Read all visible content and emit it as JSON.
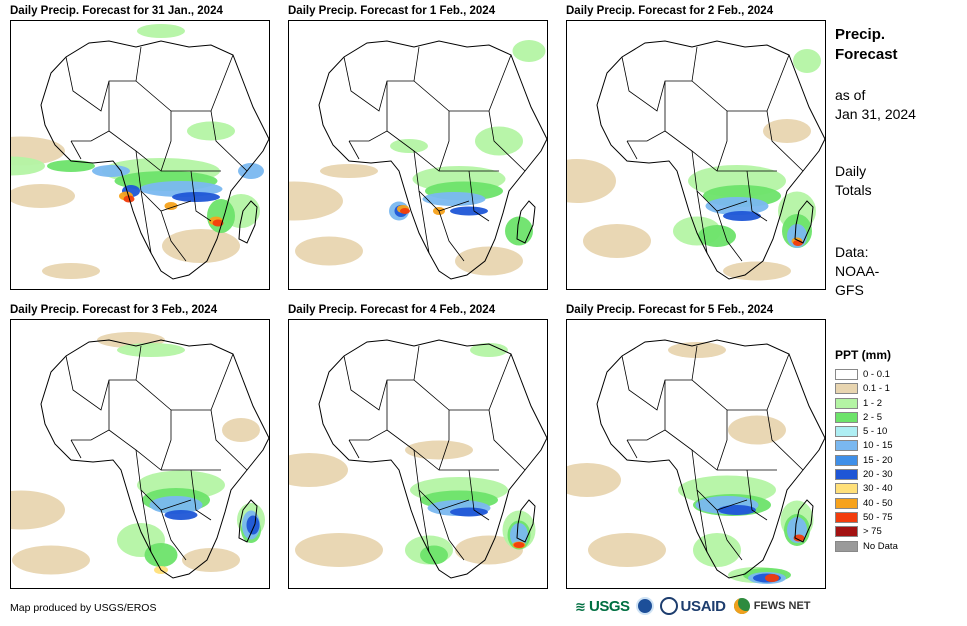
{
  "panels": [
    {
      "title": "Daily Precip. Forecast for 31 Jan., 2024"
    },
    {
      "title": "Daily Precip. Forecast for 1 Feb., 2024"
    },
    {
      "title": "Daily Precip. Forecast for 2 Feb., 2024"
    },
    {
      "title": "Daily Precip. Forecast for 3 Feb., 2024"
    },
    {
      "title": "Daily Precip. Forecast for 4 Feb., 2024"
    },
    {
      "title": "Daily Precip. Forecast for 5 Feb., 2024"
    }
  ],
  "sidebar": {
    "title_line1": "Precip.",
    "title_line2": "Forecast",
    "asof_line1": "as of",
    "asof_line2": "Jan 31, 2024",
    "totals_line1": "Daily",
    "totals_line2": "Totals",
    "data_line1": "Data:",
    "data_line2": "NOAA-",
    "data_line3": "GFS"
  },
  "legend": {
    "title": "PPT (mm)",
    "items": [
      {
        "label": "0 - 0.1",
        "color": "#ffffff"
      },
      {
        "label": "0.1 - 1",
        "color": "#e8d5b0"
      },
      {
        "label": "1 - 2",
        "color": "#b4f4a4"
      },
      {
        "label": "2 - 5",
        "color": "#6de36a"
      },
      {
        "label": "5 - 10",
        "color": "#aeeef3"
      },
      {
        "label": "10 - 15",
        "color": "#7ab8f0"
      },
      {
        "label": "15 - 20",
        "color": "#3f8fe8"
      },
      {
        "label": "20 - 30",
        "color": "#1f56d6"
      },
      {
        "label": "30 - 40",
        "color": "#ffe07a"
      },
      {
        "label": "40 - 50",
        "color": "#f7a21b"
      },
      {
        "label": "50 - 75",
        "color": "#f23c0c"
      },
      {
        "label": "> 75",
        "color": "#a31212"
      },
      {
        "label": "No Data",
        "color": "#9a9a9a"
      }
    ]
  },
  "footer": {
    "credit": "Map produced by USGS/EROS",
    "logo_usgs": "USGS",
    "logo_usaid": "USAID",
    "logo_fews": "FEWS NET"
  }
}
